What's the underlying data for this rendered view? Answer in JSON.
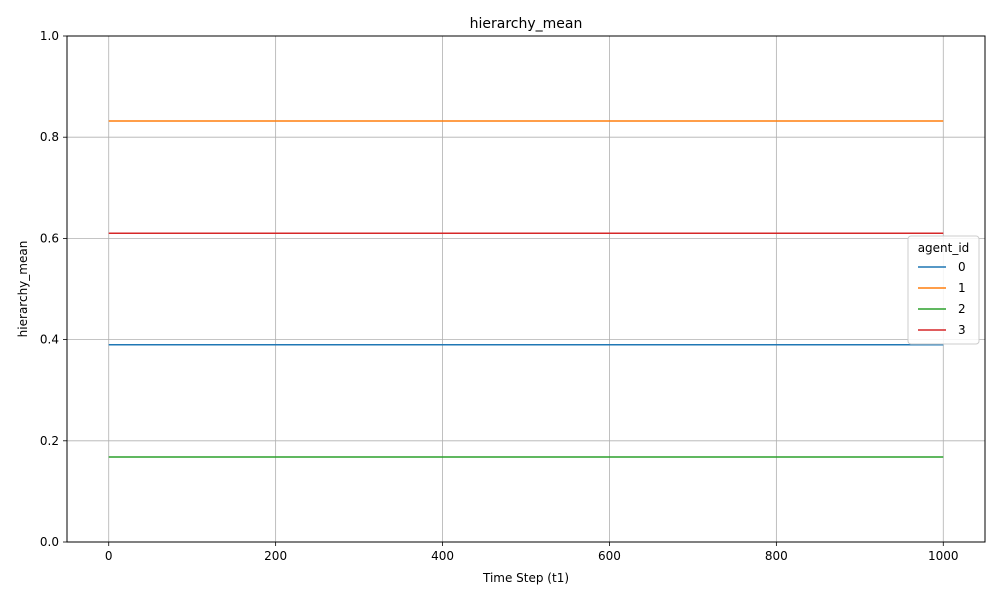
{
  "chart_data": {
    "type": "line",
    "title": "hierarchy_mean",
    "xlabel": "Time Step (t1)",
    "ylabel": "hierarchy_mean",
    "x": [
      0,
      1000
    ],
    "xlim": [
      -50,
      1050
    ],
    "ylim": [
      0,
      1
    ],
    "xticks": [
      0,
      200,
      400,
      600,
      800,
      1000
    ],
    "xtick_labels": [
      "0",
      "200",
      "400",
      "600",
      "800",
      "1000"
    ],
    "yticks": [
      0.0,
      0.2,
      0.4,
      0.6,
      0.8,
      1.0
    ],
    "ytick_labels": [
      "0.0",
      "0.2",
      "0.4",
      "0.6",
      "0.8",
      "1.0"
    ],
    "grid": true,
    "legend": {
      "title": "agent_id",
      "placement": "right"
    },
    "series": [
      {
        "name": "0",
        "color": "#1f77b4",
        "values": [
          0.39,
          0.39
        ]
      },
      {
        "name": "1",
        "color": "#ff7f0e",
        "values": [
          0.832,
          0.832
        ]
      },
      {
        "name": "2",
        "color": "#2ca02c",
        "values": [
          0.168,
          0.168
        ]
      },
      {
        "name": "3",
        "color": "#d62728",
        "values": [
          0.61,
          0.61
        ]
      }
    ]
  }
}
